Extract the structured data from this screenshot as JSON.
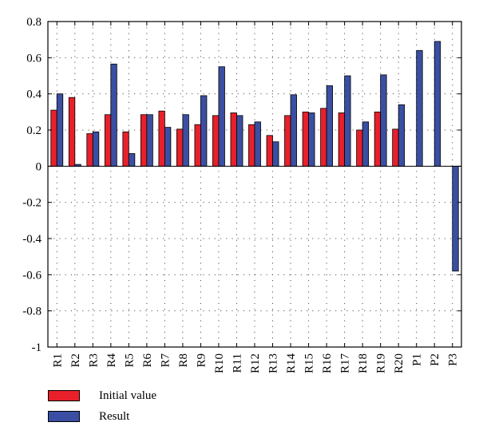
{
  "chart_data": {
    "type": "bar",
    "title": "",
    "xlabel": "",
    "ylabel": "",
    "ylim": [
      -1,
      0.8
    ],
    "yticks": [
      0.8,
      0.6,
      0.4,
      0.2,
      0,
      -0.2,
      -0.4,
      -0.6,
      -0.8,
      -1
    ],
    "ytick_labels": [
      "0.8",
      "0.6",
      "0.4",
      "0.2",
      "0",
      "-0.2",
      "-0.4",
      "-0.6",
      "-0.8",
      "-1"
    ],
    "grid": true,
    "legend_position": "bottom-left",
    "categories": [
      "R1",
      "R2",
      "R3",
      "R4",
      "R5",
      "R6",
      "R7",
      "R8",
      "R9",
      "R10",
      "R11",
      "R12",
      "R13",
      "R14",
      "R15",
      "R16",
      "R17",
      "R18",
      "R19",
      "R20",
      "P1",
      "P2",
      "P3"
    ],
    "series": [
      {
        "name": "Initial value",
        "color": "#e8202a",
        "values": [
          0.31,
          0.38,
          0.18,
          0.285,
          0.19,
          0.285,
          0.305,
          0.205,
          0.23,
          0.28,
          0.295,
          0.23,
          0.17,
          0.28,
          0.3,
          0.32,
          0.295,
          0.2,
          0.3,
          0.205,
          null,
          null,
          null
        ]
      },
      {
        "name": "Result",
        "color": "#3a4fa3",
        "values": [
          0.4,
          0.01,
          0.19,
          0.565,
          0.07,
          0.285,
          0.215,
          0.285,
          0.39,
          0.55,
          0.28,
          0.245,
          0.135,
          0.395,
          0.295,
          0.445,
          0.5,
          0.245,
          0.505,
          0.34,
          0.64,
          0.69,
          -0.58
        ]
      }
    ]
  }
}
